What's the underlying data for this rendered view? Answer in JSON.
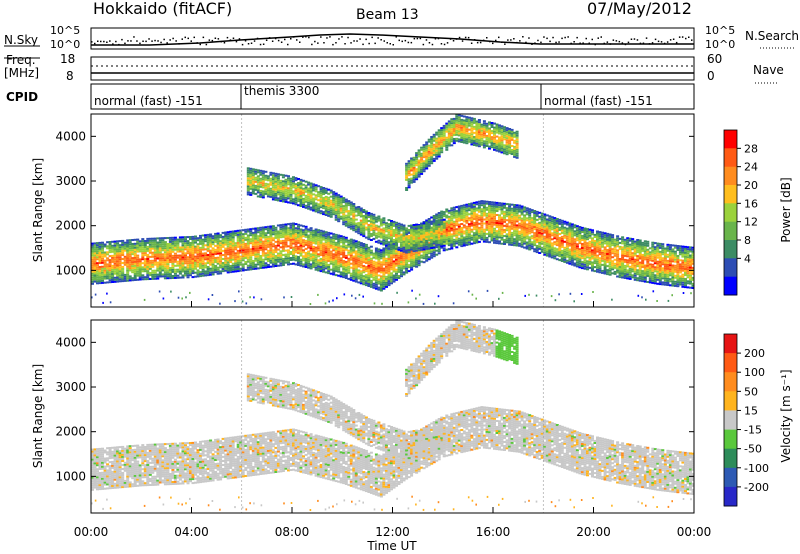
{
  "header": {
    "station": "Hokkaido (fitACF)",
    "beam": "Beam 13",
    "date": "07/May/2012"
  },
  "noise_panel": {
    "left_label": "N.Sky",
    "right_label": "N.Search",
    "left_ticks": [
      "10^5",
      "10^0"
    ],
    "right_ticks": [
      "10^5",
      "10^0"
    ]
  },
  "freq_panel": {
    "left_label_1": "Freq.",
    "left_label_2": "[MHz]",
    "left_ticks": [
      "18",
      "8"
    ],
    "right_label": "Nave",
    "right_ticks": [
      "60",
      "0"
    ]
  },
  "cpid_panel": {
    "label": "CPID",
    "segments": [
      {
        "label": "normal (fast) -151",
        "start_hour": 0,
        "end_hour": 6
      },
      {
        "label": "themis 3300",
        "start_hour": 6,
        "end_hour": 18
      },
      {
        "label": "normal (fast) -151",
        "start_hour": 18,
        "end_hour": 24
      }
    ]
  },
  "axes": {
    "ylabel": "Slant Range [km]",
    "xlabel": "Time UT",
    "x_ticks": [
      "00:00",
      "04:00",
      "08:00",
      "12:00",
      "16:00",
      "20:00",
      "00:00"
    ],
    "y_ticks": [
      "1000",
      "2000",
      "3000",
      "4000"
    ]
  },
  "power_colorbar": {
    "label": "Power [dB]",
    "ticks": [
      "4",
      "8",
      "12",
      "16",
      "20",
      "24",
      "28"
    ],
    "colors": [
      "#0000ff",
      "#2d4db4",
      "#3c8c64",
      "#69b44b",
      "#9bd23c",
      "#ffbe1e",
      "#ff8c1e",
      "#ff5a14",
      "#ff0000"
    ]
  },
  "velocity_colorbar": {
    "label": "Velocity [m s⁻¹]",
    "ticks": [
      "200",
      "100",
      "50",
      "15",
      "-15",
      "-50",
      "-100",
      "-200"
    ],
    "colors": [
      "#2828c8",
      "#2d5ab4",
      "#2d8c5a",
      "#5ac83c",
      "#c8c8c8",
      "#ffb41e",
      "#ff8c1e",
      "#ff5a14",
      "#e61414"
    ]
  },
  "chart_data": {
    "type": "heatmap",
    "title": "Hokkaido (fitACF)",
    "xlabel": "Time UT",
    "ylabel": "Slant Range [km]",
    "x_range_hours": [
      0,
      24
    ],
    "y_range_km": [
      180,
      4500
    ],
    "panels": [
      "Power [dB]",
      "Velocity [m s⁻¹]"
    ],
    "echo_bands": [
      {
        "name": "main band",
        "points": [
          [
            0,
            1150
          ],
          [
            2,
            1250
          ],
          [
            4,
            1300
          ],
          [
            6,
            1450
          ],
          [
            8,
            1600
          ],
          [
            10,
            1300
          ],
          [
            11.5,
            1000
          ],
          [
            12.5,
            1400
          ],
          [
            14,
            1900
          ],
          [
            15.5,
            2100
          ],
          [
            17,
            2000
          ],
          [
            18,
            1800
          ],
          [
            19.5,
            1500
          ],
          [
            21,
            1300
          ],
          [
            22.5,
            1150
          ],
          [
            24,
            1050
          ]
        ],
        "power_db": 24
      },
      {
        "name": "upper band",
        "points": [
          [
            6.2,
            3000
          ],
          [
            8,
            2800
          ],
          [
            9.5,
            2500
          ],
          [
            11,
            2000
          ],
          [
            12.5,
            1700
          ],
          [
            14,
            1850
          ]
        ],
        "power_db": 16
      },
      {
        "name": "far range",
        "points": [
          [
            12.5,
            3100
          ],
          [
            13.5,
            3700
          ],
          [
            14.5,
            4200
          ],
          [
            16,
            4000
          ],
          [
            17,
            3800
          ]
        ],
        "power_db": 20
      }
    ],
    "power_colorbar_range_db": [
      0,
      32
    ],
    "velocity_colorbar_range": [
      -200,
      200
    ],
    "cpid_change_hours": [
      6,
      18
    ]
  }
}
